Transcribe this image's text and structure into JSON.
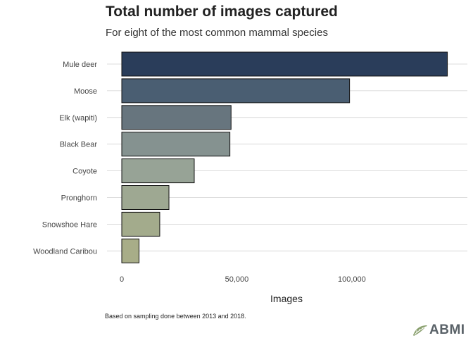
{
  "title": "Total number of images captured",
  "subtitle": "For eight of the most common mammal species",
  "caption": "Based on sampling done between 2013 and 2018.",
  "logo": {
    "text": "ABMI",
    "icon": "abmi-leaf-icon"
  },
  "chart_data": {
    "type": "bar",
    "orientation": "horizontal",
    "title": "Total number of images captured",
    "subtitle": "For eight of the most common mammal species",
    "xlabel": "Images",
    "ylabel": "",
    "categories": [
      "Mule deer",
      "Moose",
      "Elk (wapiti)",
      "Black Bear",
      "Coyote",
      "Pronghorn",
      "Snowshoe Hare",
      "Woodland Caribou"
    ],
    "values": [
      141500,
      99000,
      47500,
      47000,
      31500,
      20500,
      16500,
      7500
    ],
    "colors": [
      "#2a3d5a",
      "#4a5e72",
      "#67757e",
      "#859290",
      "#97a396",
      "#9ea892",
      "#a3ab8c",
      "#a8ad88"
    ],
    "xlim": [
      0,
      145000
    ],
    "xticks": [
      0,
      50000,
      100000
    ],
    "xtick_labels": [
      "0",
      "50,000",
      "100,000"
    ],
    "grid": {
      "horizontal": true,
      "vertical": false
    },
    "legend": "none"
  }
}
